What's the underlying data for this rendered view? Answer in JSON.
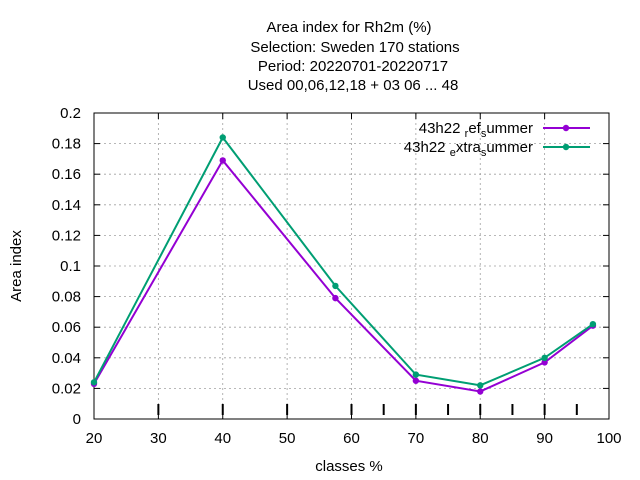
{
  "chart_data": {
    "type": "line",
    "title_lines": [
      "Area index  for Rh2m (%)",
      "Selection: Sweden    170 stations",
      "Period: 20220701-20220717",
      "Used  00,06,12,18  + 03 06 ... 48"
    ],
    "xlabel": "classes %",
    "ylabel": "Area index",
    "xlim": [
      20,
      100
    ],
    "ylim": [
      0,
      0.2
    ],
    "xticks": [
      20,
      30,
      40,
      50,
      60,
      70,
      80,
      90,
      100
    ],
    "yticks": [
      0,
      0.02,
      0.04,
      0.06,
      0.08,
      0.1,
      0.12,
      0.14,
      0.16,
      0.18,
      0.2
    ],
    "ytick_labels": [
      "0",
      "0.02",
      "0.04",
      "0.06",
      "0.08",
      "0.1",
      "0.12",
      "0.14",
      "0.16",
      "0.18",
      "0.2"
    ],
    "minor_xticks": [
      65,
      75,
      85,
      95
    ],
    "grid": true,
    "legend_position": "top-right",
    "series": [
      {
        "name": "43h22_ref_summer",
        "legend_parts": [
          "43h22 ",
          "r",
          "ef",
          "s",
          "ummer"
        ],
        "color": "#9400d3",
        "x": [
          20,
          40,
          57.5,
          70,
          80,
          90,
          97.5
        ],
        "y": [
          0.023,
          0.169,
          0.079,
          0.025,
          0.018,
          0.037,
          0.061
        ]
      },
      {
        "name": "43h22_extra_summer",
        "legend_parts": [
          "43h22 ",
          "e",
          "xtra",
          "s",
          "ummer"
        ],
        "color": "#009e73",
        "x": [
          20,
          40,
          57.5,
          70,
          80,
          90,
          97.5
        ],
        "y": [
          0.024,
          0.184,
          0.087,
          0.029,
          0.022,
          0.04,
          0.062
        ]
      }
    ]
  }
}
